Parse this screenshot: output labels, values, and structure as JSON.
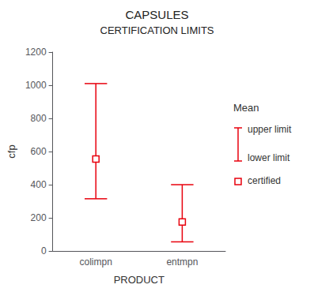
{
  "chart_data": {
    "type": "errorbar",
    "title": "CAPSULES",
    "subtitle": "CERTIFICATION LIMITS",
    "xlabel": "PRODUCT",
    "ylabel": "cfp",
    "categories": [
      "colimpn",
      "entmpn"
    ],
    "values": [
      555,
      175
    ],
    "upper_limits": [
      1010,
      400
    ],
    "lower_limits": [
      315,
      55
    ],
    "color": "#e8000d",
    "marker": "square",
    "ylim": [
      0,
      1200
    ],
    "yticks": [
      0,
      200,
      400,
      600,
      800,
      1000,
      1200
    ],
    "grid": false,
    "legend": "right",
    "legend_title": "Mean",
    "legend_labels": {
      "upper": "upper limit",
      "lower": "lower limit",
      "mean": "certified"
    }
  }
}
